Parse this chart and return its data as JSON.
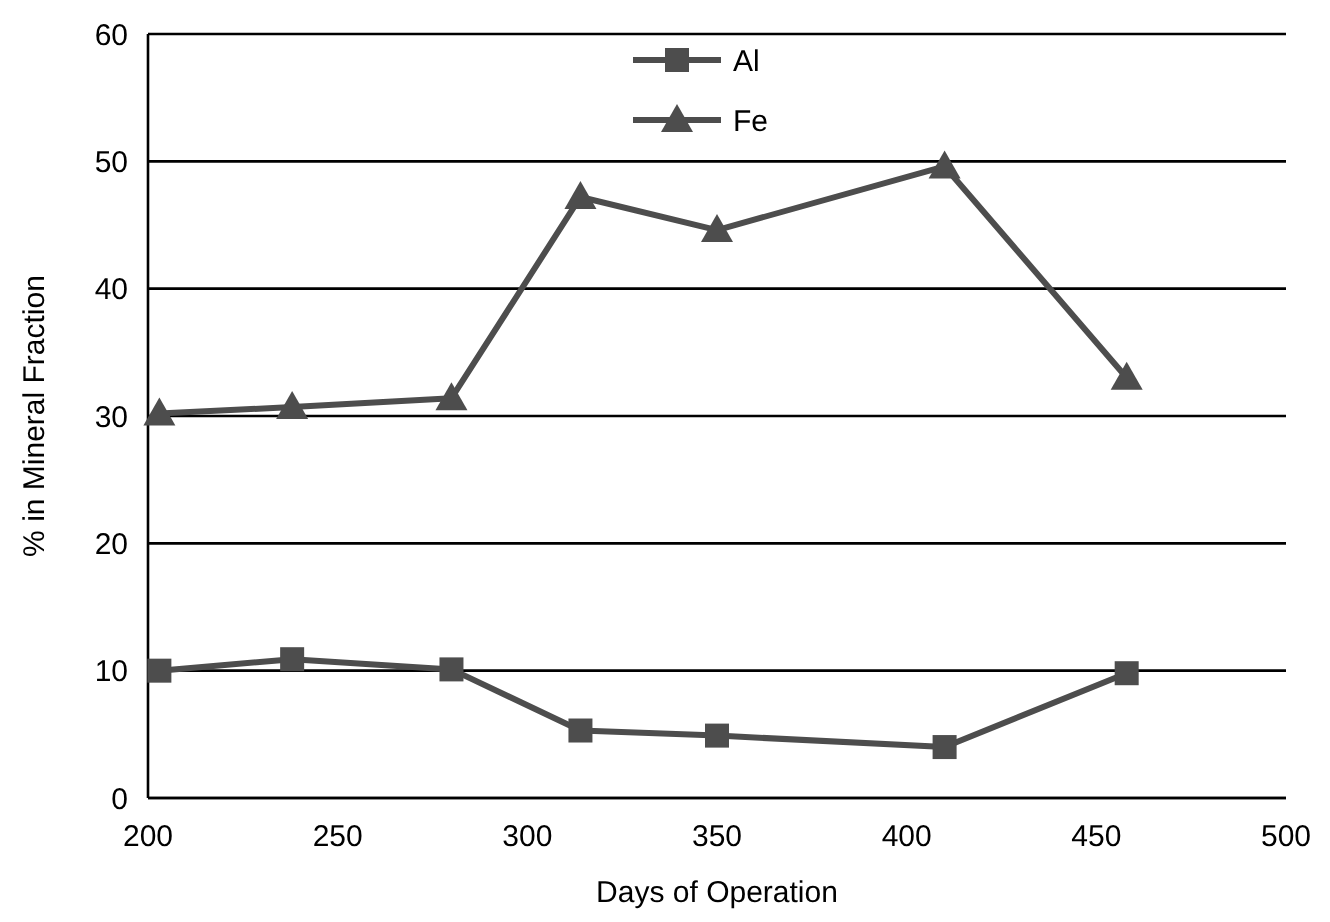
{
  "chart_data": {
    "type": "line",
    "xlabel": "Days of Operation",
    "ylabel": "% in Mineral Fraction",
    "x": [
      203,
      238,
      280,
      314,
      350,
      410,
      458
    ],
    "series": [
      {
        "name": "Al",
        "color": "#4d4d4d",
        "marker": "square",
        "values": [
          10,
          10.9,
          10.1,
          5.3,
          4.9,
          4.0,
          9.8
        ]
      },
      {
        "name": "Fe",
        "color": "#4d4d4d",
        "marker": "triangle",
        "values": [
          30.2,
          30.7,
          31.4,
          47.2,
          44.6,
          49.6,
          33.0
        ]
      }
    ],
    "xlim": [
      200,
      500
    ],
    "xticks": [
      200,
      250,
      300,
      350,
      400,
      450,
      500
    ],
    "ylim": [
      0,
      60
    ],
    "yticks": [
      0,
      10,
      20,
      30,
      40,
      50,
      60
    ],
    "grid": "y",
    "legend": "top"
  }
}
